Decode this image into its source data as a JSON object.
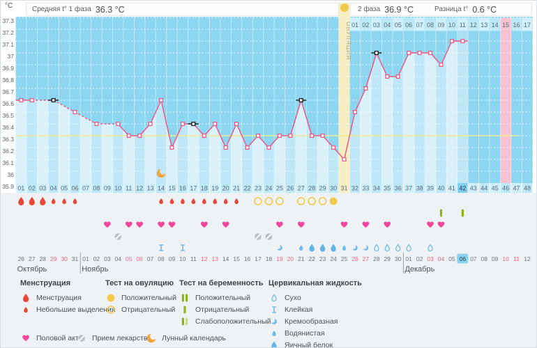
{
  "header": {
    "unit": "°C",
    "avg_label": "Средняя t° 1 фаза",
    "avg_value": "36.3 °C",
    "phase2_label": "2 фаза",
    "phase2_value": "36.9 °C",
    "diff_label": "Разница t°",
    "diff_value": "0.6 °C",
    "ovulation_label": "ОВУЛЯЦИЯ"
  },
  "colors": {
    "accent_line": "#ea5a84",
    "plot_bg": "#8dd6f1",
    "area_fill": "#bfe7f7",
    "coverline": "#f0eb8e",
    "ovulation_band": "#f6efc3",
    "ovulation_text": "#a3a188",
    "period_band": "#f8c3d0",
    "today_highlight": "#7fd0f0",
    "today_date_highlight": "#8ad2f1",
    "cell_light": "#cfeffb",
    "cell_dark": "#bde8f8",
    "menstruation": "#ea4638",
    "ovulation_test": "#f2c94c",
    "pregnancy_test": "#8fb31a",
    "pregnancy_test_pale": "#c9dc8f",
    "intercourse": "#f2459c",
    "medication": "#b9c0c4",
    "lunar": "#f6a13b",
    "fluid": "#6fbce9",
    "weekend_text": "#ef6483",
    "day_text": "#5a6b74",
    "date_text": "#6b7478",
    "flag_marker": "#1a1a1a"
  },
  "chart_data": {
    "type": "line",
    "title": "Basal body temperature cycle chart",
    "ylabel": "°C",
    "ylim": [
      35.9,
      37.3
    ],
    "yticks": [
      "37.3",
      "37.2",
      "37.1",
      "37",
      "36.9",
      "36.8",
      "36.7",
      "36.6",
      "36.5",
      "36.4",
      "36.3",
      "36.2",
      "36.1",
      "36",
      "35.9"
    ],
    "days": 48,
    "day_labels": [
      "01",
      "02",
      "03",
      "04",
      "05",
      "06",
      "07",
      "08",
      "09",
      "10",
      "11",
      "12",
      "13",
      "14",
      "15",
      "16",
      "17",
      "18",
      "19",
      "20",
      "21",
      "22",
      "23",
      "24",
      "25",
      "26",
      "27",
      "28",
      "29",
      "30",
      "31",
      "32",
      "33",
      "34",
      "35",
      "36",
      "37",
      "38",
      "39",
      "40",
      "41",
      "42",
      "43",
      "44",
      "45",
      "46",
      "47",
      "48"
    ],
    "temperatures": [
      36.6,
      36.6,
      null,
      36.6,
      null,
      36.5,
      null,
      36.4,
      null,
      36.4,
      36.3,
      36.3,
      36.4,
      36.6,
      36.2,
      36.4,
      36.4,
      36.3,
      36.4,
      36.2,
      36.4,
      36.2,
      36.3,
      36.2,
      36.3,
      36.3,
      36.6,
      36.3,
      36.3,
      36.2,
      36.1,
      36.5,
      36.7,
      37.0,
      36.8,
      36.8,
      37.0,
      37.0,
      37.0,
      36.9,
      37.1,
      37.1,
      null,
      null,
      null,
      null,
      null,
      null
    ],
    "flagged_days": [
      4,
      17,
      27,
      34
    ],
    "coverline": 36.3,
    "ovulation_day": 31,
    "current_day": 42,
    "expected_period_day": 46,
    "phase2_start_day": 32,
    "phase2_day_labels": [
      "01",
      "02",
      "03",
      "04",
      "05",
      "06",
      "07",
      "08",
      "09",
      "10",
      "11",
      "12",
      "13",
      "14",
      "15",
      "16",
      "17"
    ],
    "phase2_highlight_label": "15",
    "events": {
      "menstruation": [
        1,
        2,
        3
      ],
      "spotting": [
        4,
        5,
        6,
        14,
        15,
        16,
        17,
        18,
        19,
        20,
        21
      ],
      "ovulation_test_negative": [
        23,
        24,
        25,
        27,
        28,
        29
      ],
      "ovulation_test_positive": [
        30
      ],
      "pregnancy_test_negative": [
        40,
        42
      ],
      "intercourse": [
        9,
        11,
        12,
        14,
        15,
        18,
        20,
        25,
        27,
        31,
        33,
        35,
        39,
        40
      ],
      "medication": [
        10,
        23,
        24
      ],
      "lunar": [
        14
      ],
      "cervical_fluid": {
        "14": "sticky",
        "16": "sticky",
        "25": "creamy",
        "27": "watery",
        "28": "eggwhite",
        "29": "eggwhite",
        "30": "eggwhite",
        "31": "watery",
        "32": "creamy",
        "33": "creamy",
        "34": "dry",
        "35": "dry",
        "36": "dry",
        "37": "dry",
        "39": "dry"
      }
    },
    "calendar": {
      "date_labels": [
        "26",
        "27",
        "28",
        "29",
        "30",
        "31",
        "01",
        "02",
        "03",
        "04",
        "05",
        "06",
        "07",
        "08",
        "09",
        "10",
        "11",
        "12",
        "13",
        "14",
        "15",
        "16",
        "17",
        "18",
        "19",
        "20",
        "21",
        "22",
        "23",
        "24",
        "25",
        "26",
        "27",
        "28",
        "29",
        "30",
        "01",
        "02",
        "03",
        "04",
        "05",
        "06",
        "07",
        "08",
        "09",
        "10",
        "11",
        "12"
      ],
      "weekend_days": [
        4,
        5,
        11,
        12,
        18,
        19,
        25,
        26,
        32,
        33,
        39,
        40,
        46,
        47
      ],
      "today_day": 42,
      "separators_before_day": [
        7,
        37
      ],
      "month_labels": [
        {
          "name": "Октябрь",
          "day": 1
        },
        {
          "name": "Ноябрь",
          "day": 7
        },
        {
          "name": "Декабрь",
          "day": 37
        }
      ]
    }
  },
  "legend": {
    "sections": [
      {
        "title": "Менструация",
        "items": [
          {
            "icon": "drop-large",
            "label": "Менструация"
          },
          {
            "icon": "drop-small",
            "label": "Небольшие выделения"
          }
        ]
      },
      {
        "title": "Тест на овуляцию",
        "items": [
          {
            "icon": "circle-filled",
            "label": "Положительный"
          },
          {
            "icon": "circle-outline",
            "label": "Отрицательный"
          }
        ]
      },
      {
        "title": "Тест на беременность",
        "items": [
          {
            "icon": "bars-two",
            "label": "Положительный"
          },
          {
            "icon": "bar-one",
            "label": "Отрицательный"
          },
          {
            "icon": "bars-weak",
            "label": "Слабоположительный"
          }
        ]
      },
      {
        "title": "Цервикальная жидкость",
        "items": [
          {
            "icon": "fluid-dry",
            "label": "Сухо"
          },
          {
            "icon": "fluid-sticky",
            "label": "Клейкая"
          },
          {
            "icon": "fluid-creamy",
            "label": "Кремообразная"
          },
          {
            "icon": "fluid-watery",
            "label": "Водянистая"
          },
          {
            "icon": "fluid-eggwhite",
            "label": "Яичный белок"
          }
        ]
      }
    ],
    "footer_items": [
      {
        "icon": "heart",
        "label": "Половой акт"
      },
      {
        "icon": "pill",
        "label": "Прием лекарств"
      },
      {
        "icon": "moon",
        "label": "Лунный календарь"
      }
    ]
  }
}
